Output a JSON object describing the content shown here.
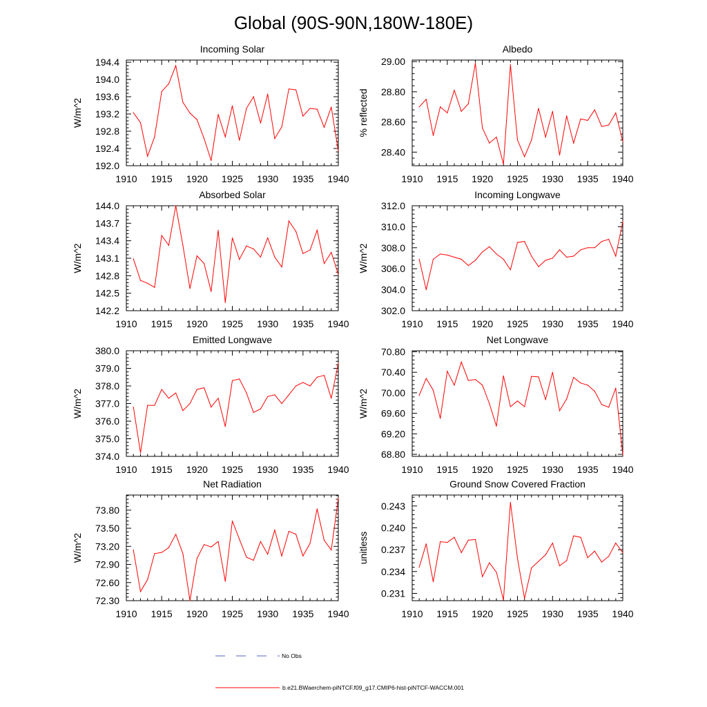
{
  "figure": {
    "title": "Global (90S-90N,180W-180E)",
    "line_color": "#ff0000",
    "obs_color": "#5060c0"
  },
  "legend": {
    "obs_label": "No Obs",
    "model_label": "b.e21.BWaerchem-piNTCF.f09_g17.CMIP6-hist-piNTCF-WACCM.001"
  },
  "chart_data": [
    {
      "type": "line",
      "title": "Incoming Solar",
      "ylabel": "W/m^2",
      "xlim": [
        1910,
        1940
      ],
      "ylim": [
        192.0,
        194.45
      ],
      "xticks": [
        "1910",
        "1915",
        "1920",
        "1925",
        "1930",
        "1935",
        "1940"
      ],
      "yticks": [
        "192.0",
        "192.4",
        "192.8",
        "193.2",
        "193.6",
        "194.0",
        "194.4"
      ],
      "x": [
        1911,
        1912,
        1913,
        1914,
        1915,
        1916,
        1917,
        1918,
        1919,
        1920,
        1921,
        1922,
        1923,
        1924,
        1925,
        1926,
        1927,
        1928,
        1929,
        1930,
        1931,
        1932,
        1933,
        1934,
        1935,
        1936,
        1937,
        1938,
        1939,
        1940
      ],
      "series": [
        {
          "values": [
            193.23,
            193.0,
            192.22,
            192.67,
            193.72,
            193.9,
            194.32,
            193.47,
            193.22,
            193.07,
            192.63,
            192.12,
            193.19,
            192.67,
            193.39,
            192.59,
            193.33,
            193.6,
            192.99,
            193.66,
            192.63,
            192.9,
            193.78,
            193.76,
            193.15,
            193.33,
            193.31,
            192.89,
            193.36,
            192.34
          ]
        }
      ]
    },
    {
      "type": "line",
      "title": "Albedo",
      "ylabel": "% reflected",
      "xlim": [
        1910,
        1940
      ],
      "ylim": [
        28.31,
        29.01
      ],
      "xticks": [
        "1910",
        "1915",
        "1920",
        "1925",
        "1930",
        "1935",
        "1940"
      ],
      "yticks": [
        "28.40",
        "28.60",
        "28.80",
        "29.00"
      ],
      "x": [
        1911,
        1912,
        1913,
        1914,
        1915,
        1916,
        1917,
        1918,
        1919,
        1920,
        1921,
        1922,
        1923,
        1924,
        1925,
        1926,
        1927,
        1928,
        1929,
        1930,
        1931,
        1932,
        1933,
        1934,
        1935,
        1936,
        1937,
        1938,
        1939,
        1940
      ],
      "series": [
        {
          "values": [
            28.7,
            28.75,
            28.51,
            28.7,
            28.66,
            28.81,
            28.67,
            28.72,
            28.99,
            28.56,
            28.46,
            28.5,
            28.32,
            28.98,
            28.48,
            28.37,
            28.48,
            28.69,
            28.5,
            28.67,
            28.38,
            28.64,
            28.46,
            28.62,
            28.61,
            28.68,
            28.57,
            28.58,
            28.66,
            28.47
          ]
        }
      ]
    },
    {
      "type": "line",
      "title": "Absorbed Solar",
      "ylabel": "W/m^2",
      "xlim": [
        1910,
        1940
      ],
      "ylim": [
        142.2,
        144.0
      ],
      "xticks": [
        "1910",
        "1915",
        "1920",
        "1925",
        "1930",
        "1935",
        "1940"
      ],
      "yticks": [
        "142.2",
        "142.5",
        "142.8",
        "143.1",
        "143.4",
        "143.7",
        "144.0"
      ],
      "x": [
        1911,
        1912,
        1913,
        1914,
        1915,
        1916,
        1917,
        1918,
        1919,
        1920,
        1921,
        1922,
        1923,
        1924,
        1925,
        1926,
        1927,
        1928,
        1929,
        1930,
        1931,
        1932,
        1933,
        1934,
        1935,
        1936,
        1937,
        1938,
        1939,
        1940
      ],
      "series": [
        {
          "values": [
            143.09,
            142.72,
            142.67,
            142.6,
            143.49,
            143.32,
            144.0,
            143.32,
            142.58,
            143.14,
            143.01,
            142.53,
            143.58,
            142.34,
            143.45,
            143.08,
            143.31,
            143.26,
            143.12,
            143.45,
            143.12,
            142.95,
            143.74,
            143.56,
            143.18,
            143.24,
            143.58,
            143.01,
            143.2,
            142.82
          ]
        }
      ]
    },
    {
      "type": "line",
      "title": "Incoming Longwave",
      "ylabel": "W/m^2",
      "xlim": [
        1910,
        1940
      ],
      "ylim": [
        302.0,
        312.0
      ],
      "xticks": [
        "1910",
        "1915",
        "1920",
        "1925",
        "1930",
        "1935",
        "1940"
      ],
      "yticks": [
        "302.0",
        "304.0",
        "306.0",
        "308.0",
        "310.0",
        "312.0"
      ],
      "x": [
        1911,
        1912,
        1913,
        1914,
        1915,
        1916,
        1917,
        1918,
        1919,
        1920,
        1921,
        1922,
        1923,
        1924,
        1925,
        1926,
        1927,
        1928,
        1929,
        1930,
        1931,
        1932,
        1933,
        1934,
        1935,
        1936,
        1937,
        1938,
        1939,
        1940
      ],
      "series": [
        {
          "values": [
            306.9,
            304.0,
            306.9,
            307.4,
            307.3,
            307.1,
            306.9,
            306.3,
            306.8,
            307.6,
            308.1,
            307.4,
            306.9,
            305.9,
            308.5,
            308.6,
            307.2,
            306.2,
            306.8,
            307.0,
            307.8,
            307.1,
            307.2,
            307.8,
            308.0,
            308.0,
            308.6,
            308.8,
            307.2,
            310.5
          ]
        }
      ]
    },
    {
      "type": "line",
      "title": "Emitted Longwave",
      "ylabel": "W/m^2",
      "xlim": [
        1910,
        1940
      ],
      "ylim": [
        374.0,
        380.0
      ],
      "xticks": [
        "1910",
        "1915",
        "1920",
        "1925",
        "1930",
        "1935",
        "1940"
      ],
      "yticks": [
        "374.0",
        "375.0",
        "376.0",
        "377.0",
        "378.0",
        "379.0",
        "380.0"
      ],
      "x": [
        1911,
        1912,
        1913,
        1914,
        1915,
        1916,
        1917,
        1918,
        1919,
        1920,
        1921,
        1922,
        1923,
        1924,
        1925,
        1926,
        1927,
        1928,
        1929,
        1930,
        1931,
        1932,
        1933,
        1934,
        1935,
        1936,
        1937,
        1938,
        1939,
        1940
      ],
      "series": [
        {
          "values": [
            376.8,
            374.2,
            376.9,
            376.9,
            377.8,
            377.3,
            377.6,
            376.6,
            377.0,
            377.8,
            377.9,
            376.8,
            377.3,
            375.7,
            378.3,
            378.4,
            377.6,
            376.5,
            376.7,
            377.4,
            377.5,
            377.0,
            377.5,
            378.0,
            378.2,
            378.0,
            378.5,
            378.6,
            377.3,
            379.3
          ]
        }
      ]
    },
    {
      "type": "line",
      "title": "Net Longwave",
      "ylabel": "W/m^2",
      "xlim": [
        1910,
        1940
      ],
      "ylim": [
        68.76,
        70.82
      ],
      "xticks": [
        "1910",
        "1915",
        "1920",
        "1925",
        "1930",
        "1935",
        "1940"
      ],
      "yticks": [
        "68.80",
        "69.20",
        "69.60",
        "70.00",
        "70.40",
        "70.80"
      ],
      "x": [
        1911,
        1912,
        1913,
        1914,
        1915,
        1916,
        1917,
        1918,
        1919,
        1920,
        1921,
        1922,
        1923,
        1924,
        1925,
        1926,
        1927,
        1928,
        1929,
        1930,
        1931,
        1932,
        1933,
        1934,
        1935,
        1936,
        1937,
        1938,
        1939,
        1940
      ],
      "series": [
        {
          "values": [
            69.95,
            70.28,
            70.05,
            69.5,
            70.42,
            70.15,
            70.6,
            70.24,
            70.26,
            70.15,
            69.79,
            69.35,
            70.33,
            69.73,
            69.84,
            69.73,
            70.32,
            70.31,
            69.87,
            70.4,
            69.65,
            69.88,
            70.3,
            70.19,
            70.15,
            70.03,
            69.77,
            69.72,
            70.09,
            68.79
          ]
        }
      ]
    },
    {
      "type": "line",
      "title": "Net Radiation",
      "ylabel": "W/m^2",
      "xlim": [
        1910,
        1940
      ],
      "ylim": [
        72.3,
        74.05
      ],
      "xticks": [
        "1910",
        "1915",
        "1920",
        "1925",
        "1930",
        "1935",
        "1940"
      ],
      "yticks": [
        "72.30",
        "72.60",
        "72.90",
        "73.20",
        "73.50",
        "73.80"
      ],
      "x": [
        1911,
        1912,
        1913,
        1914,
        1915,
        1916,
        1917,
        1918,
        1919,
        1920,
        1921,
        1922,
        1923,
        1924,
        1925,
        1926,
        1927,
        1928,
        1929,
        1930,
        1931,
        1932,
        1933,
        1934,
        1935,
        1936,
        1937,
        1938,
        1939,
        1940
      ],
      "series": [
        {
          "values": [
            73.14,
            72.45,
            72.65,
            73.08,
            73.1,
            73.18,
            73.4,
            73.08,
            72.3,
            73.0,
            73.23,
            73.19,
            73.28,
            72.62,
            73.62,
            73.32,
            73.02,
            72.97,
            73.28,
            73.07,
            73.47,
            73.04,
            73.45,
            73.4,
            73.04,
            73.25,
            73.82,
            73.3,
            73.14,
            74.0
          ]
        }
      ]
    },
    {
      "type": "line",
      "title": "Ground Snow Covered Fraction",
      "ylabel": "unitless",
      "xlim": [
        1910,
        1940
      ],
      "ylim": [
        0.23,
        0.2445
      ],
      "xticks": [
        "1910",
        "1915",
        "1920",
        "1925",
        "1930",
        "1935",
        "1940"
      ],
      "yticks": [
        "0.231",
        "0.234",
        "0.237",
        "0.240",
        "0.243"
      ],
      "x": [
        1911,
        1912,
        1913,
        1914,
        1915,
        1916,
        1917,
        1918,
        1919,
        1920,
        1921,
        1922,
        1923,
        1924,
        1925,
        1926,
        1927,
        1928,
        1929,
        1930,
        1931,
        1932,
        1933,
        1934,
        1935,
        1936,
        1937,
        1938,
        1939,
        1940
      ],
      "series": [
        {
          "values": [
            0.2346,
            0.2378,
            0.2326,
            0.2381,
            0.238,
            0.2387,
            0.2366,
            0.2383,
            0.2384,
            0.2333,
            0.2352,
            0.2339,
            0.2301,
            0.2435,
            0.2358,
            0.2303,
            0.2345,
            0.2354,
            0.2363,
            0.2379,
            0.2348,
            0.2355,
            0.2389,
            0.2387,
            0.2359,
            0.2368,
            0.2353,
            0.2361,
            0.2379,
            0.2366
          ]
        }
      ]
    }
  ]
}
